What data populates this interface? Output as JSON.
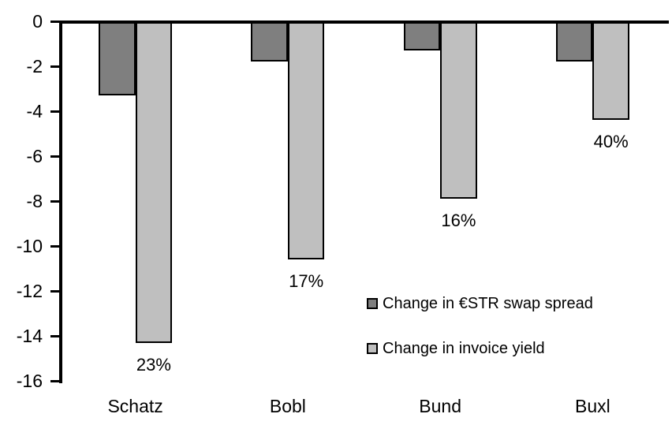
{
  "chart_data": {
    "type": "bar",
    "title": "",
    "categories": [
      "Schatz",
      "Bobl",
      "Bund",
      "Buxl"
    ],
    "series": [
      {
        "name": "Change in €STR swap spread",
        "color": "#7f7f7f",
        "values": [
          -3.3,
          -1.8,
          -1.3,
          -1.8
        ]
      },
      {
        "name": "Change in invoice yield",
        "color": "#bfbfbf",
        "values": [
          -14.3,
          -10.6,
          -7.9,
          -4.4
        ]
      }
    ],
    "bar_labels": {
      "series_index": 1,
      "values": [
        "23%",
        "17%",
        "16%",
        "40%"
      ]
    },
    "y_axis": {
      "min": -16,
      "max": 0,
      "tick_step": 2,
      "ticks": [
        0,
        -2,
        -4,
        -6,
        -8,
        -10,
        -12,
        -14,
        -16
      ]
    },
    "x_axis": {
      "labels": [
        "Schatz",
        "Bobl",
        "Bund",
        "Buxl"
      ]
    },
    "legend": {
      "position": "inside-right",
      "entries": [
        "Change in €STR swap spread",
        "Change in invoice yield"
      ]
    },
    "colors": {
      "bar_border": "#000000",
      "axis": "#000000",
      "text": "#000000",
      "background": "#ffffff"
    },
    "grid": false
  }
}
